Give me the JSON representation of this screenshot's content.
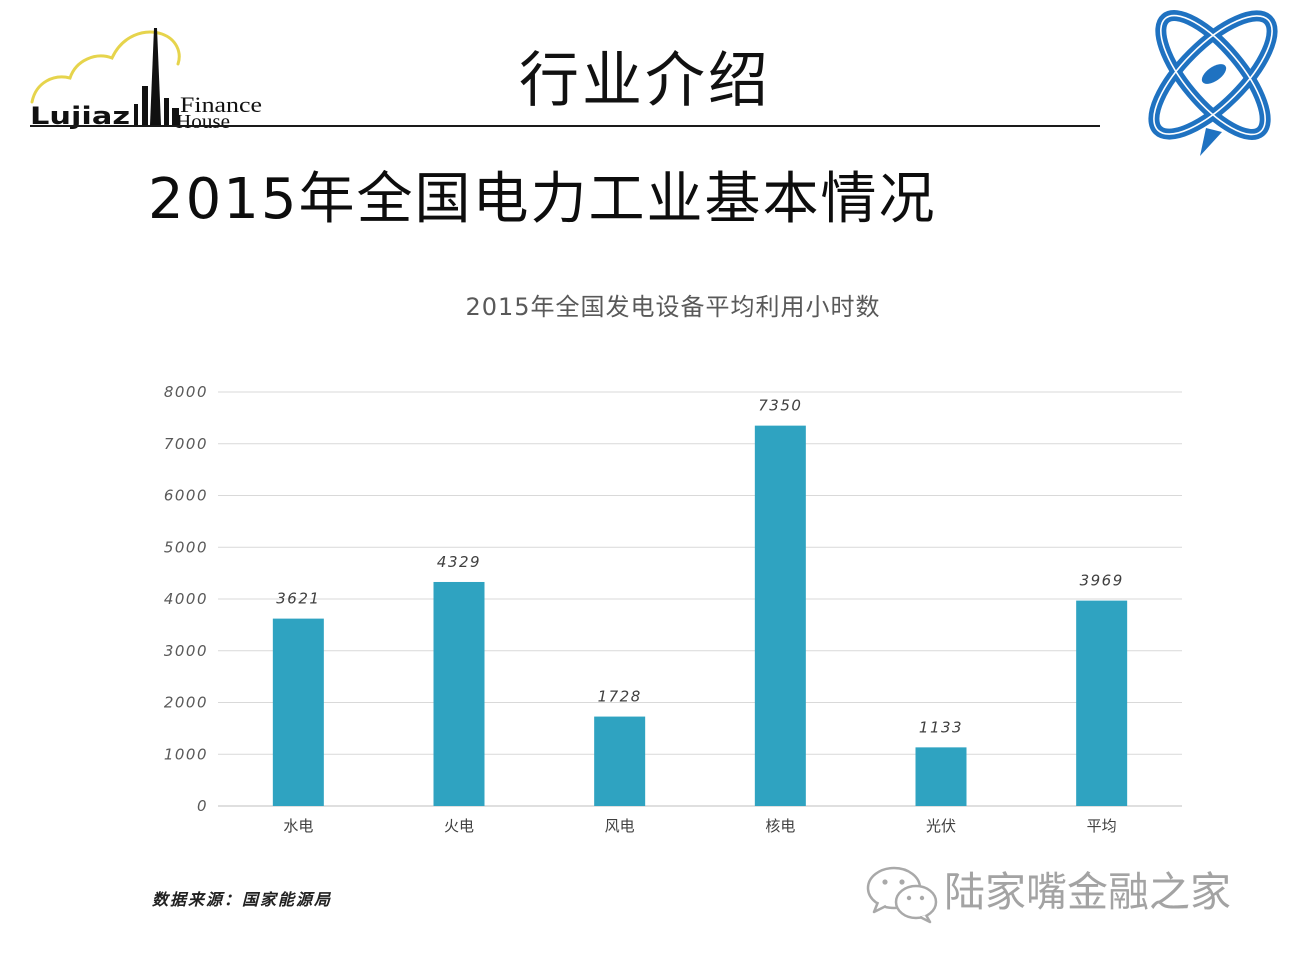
{
  "header": {
    "title": "行业介绍"
  },
  "logo_left": {
    "skyline_text": "Lujiaz",
    "text_line_1": "Finance",
    "text_line_2": "House",
    "cloud_color": "#e6d44c",
    "ink_color": "#111111"
  },
  "logo_right": {
    "icon": "atom-logo-icon",
    "color": "#1f72c1"
  },
  "subtitle": "2015年全国电力工业基本情况",
  "chart_data": {
    "type": "bar",
    "title": "2015年全国发电设备平均利用小时数",
    "categories": [
      "水电",
      "火电",
      "风电",
      "核电",
      "光伏",
      "平均"
    ],
    "values": [
      3621,
      4329,
      1728,
      7350,
      1133,
      3969
    ],
    "data_labels": true,
    "xlabel": "",
    "ylabel": "",
    "ylim": [
      0,
      8000
    ],
    "yticks": [
      0,
      1000,
      2000,
      3000,
      4000,
      5000,
      6000,
      7000,
      8000
    ],
    "grid": true,
    "legend": false,
    "bar_color": "#2fa3c1"
  },
  "source": "数据来源：国家能源局",
  "watermark": {
    "icon": "wechat-icon",
    "text": "陆家嘴金融之家",
    "color": "#a3a3a3"
  }
}
